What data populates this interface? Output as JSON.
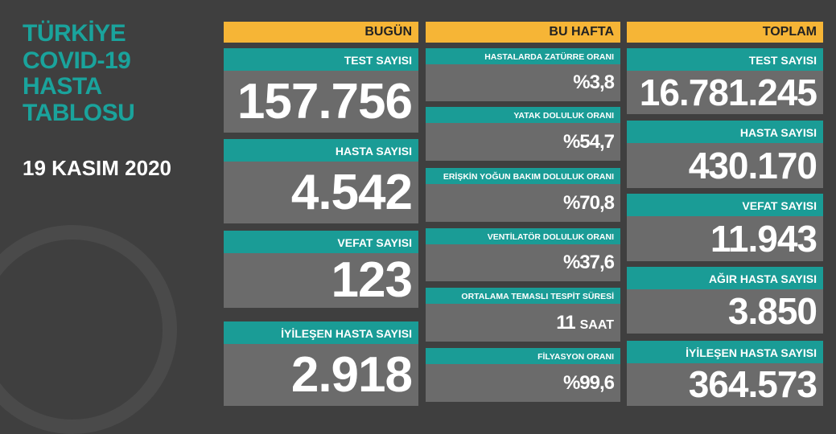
{
  "title_lines": [
    "TÜRKİYE",
    "COVID-19",
    "HASTA",
    "TABLOSU"
  ],
  "date": "19 KASIM 2020",
  "columns": [
    {
      "header": "BUGÜN",
      "cards": [
        {
          "label": "TEST SAYISI",
          "value": "157.756"
        },
        {
          "label": "HASTA SAYISI",
          "value": "4.542"
        },
        {
          "label": "VEFAT SAYISI",
          "value": "123"
        },
        {
          "label": "İYİLEŞEN HASTA SAYISI",
          "value": "2.918"
        }
      ]
    },
    {
      "header": "BU HAFTA",
      "cards": [
        {
          "label": "HASTALARDA ZATÜRRE ORANI",
          "value": "%3,8"
        },
        {
          "label": "YATAK DOLULUK ORANI",
          "value": "%54,7"
        },
        {
          "label": "ERİŞKİN YOĞUN BAKIM DOLULUK ORANI",
          "value": "%70,8"
        },
        {
          "label": "VENTİLATÖR DOLULUK ORANI",
          "value": "%37,6"
        },
        {
          "label": "ORTALAMA TEMASLI TESPİT SÜRESİ",
          "value": "11",
          "unit": "SAAT"
        },
        {
          "label": "FİLYASYON ORANI",
          "value": "%99,6"
        }
      ]
    },
    {
      "header": "TOPLAM",
      "cards": [
        {
          "label": "TEST SAYISI",
          "value": "16.781.245"
        },
        {
          "label": "HASTA SAYISI",
          "value": "430.170"
        },
        {
          "label": "VEFAT SAYISI",
          "value": "11.943"
        },
        {
          "label": "AĞIR HASTA SAYISI",
          "value": "3.850"
        },
        {
          "label": "İYİLEŞEN HASTA SAYISI",
          "value": "364.573"
        }
      ]
    }
  ]
}
